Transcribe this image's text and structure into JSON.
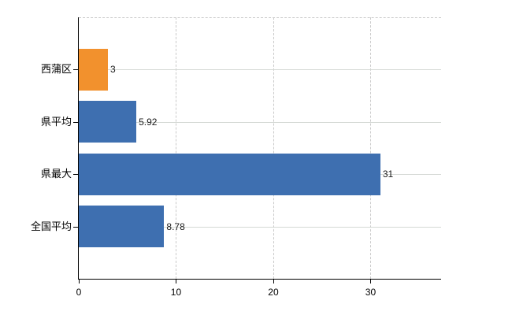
{
  "chart_data": {
    "type": "bar",
    "orientation": "horizontal",
    "title": "",
    "categories": [
      "西蒲区",
      "県平均",
      "県最大",
      "全国平均"
    ],
    "values": [
      3,
      5.92,
      31,
      8.78
    ],
    "value_labels": [
      "3",
      "5.92",
      "31",
      "8.78"
    ],
    "bar_colors": [
      "#F2912D",
      "#3E6FB0",
      "#3E6FB0",
      "#3E6FB0"
    ],
    "xlim": [
      0,
      37.25
    ],
    "x_ticks": [
      0,
      10,
      20,
      30
    ],
    "x_tick_labels": [
      "0",
      "10",
      "20",
      "30"
    ],
    "grid": true,
    "legend": false
  },
  "colors": {
    "bar_orange": "#F2912D",
    "bar_blue": "#3E6FB0",
    "axis": "#000000",
    "gridline_h": "#d5d9d5",
    "gridline_v_dashed": "#c9c9c9",
    "text": "#000000",
    "background": "#ffffff"
  }
}
